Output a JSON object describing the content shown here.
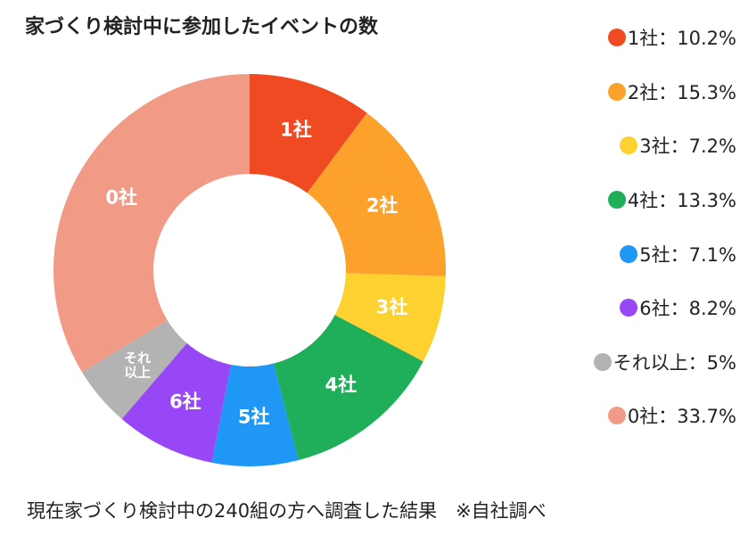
{
  "chart_data": {
    "type": "donut",
    "title": "家づくり検討中に参加したイベントの数",
    "categories": [
      "1社",
      "2社",
      "3社",
      "4社",
      "5社",
      "6社",
      "それ以上",
      "0社"
    ],
    "values": [
      10.2,
      15.3,
      7.2,
      13.3,
      7.1,
      8.2,
      5,
      33.7
    ],
    "colors": [
      "#f04a23",
      "#fca12b",
      "#fdd130",
      "#1fae5a",
      "#1e97f5",
      "#9747f6",
      "#b3b3b3",
      "#f19b87"
    ],
    "legend": [
      "1社：10.2%",
      "2社：15.3%",
      "3社：7.2%",
      "4社：13.3%",
      "5社：7.1%",
      "6社：8.2%",
      "それ以上：5%",
      "0社：33.7%"
    ],
    "footnote": "現在家づくり検討中の240組の方へ調査した結果　※自社調べ"
  }
}
